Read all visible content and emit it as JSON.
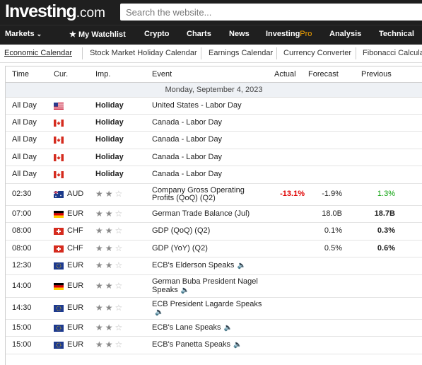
{
  "header": {
    "logo_main": "Investing",
    "logo_suffix": ".com",
    "search_placeholder": "Search the website..."
  },
  "nav": {
    "markets": "Markets",
    "markets_chevron": "⌄",
    "watchlist": "My Watchlist",
    "watchlist_icon": "★",
    "crypto": "Crypto",
    "charts": "Charts",
    "news": "News",
    "investing_pro_a": "Investing",
    "investing_pro_b": "Pro",
    "analysis": "Analysis",
    "technical": "Technical"
  },
  "subnav": [
    "Economic Calendar",
    "Stock Market Holiday Calendar",
    "Earnings Calendar",
    "Currency Converter",
    "Fibonacci Calcula"
  ],
  "table": {
    "headers": {
      "time": "Time",
      "cur": "Cur.",
      "imp": "Imp.",
      "event": "Event",
      "actual": "Actual",
      "forecast": "Forecast",
      "previous": "Previous"
    },
    "date": "Monday, September 4, 2023",
    "rows": [
      {
        "time": "All Day",
        "flag": "us",
        "cur": "",
        "imp": "Holiday",
        "event": "United States - Labor Day",
        "actual": "",
        "forecast": "",
        "previous": ""
      },
      {
        "time": "All Day",
        "flag": "ca",
        "cur": "",
        "imp": "Holiday",
        "event": "Canada - Labor Day",
        "actual": "",
        "forecast": "",
        "previous": ""
      },
      {
        "time": "All Day",
        "flag": "ca",
        "cur": "",
        "imp": "Holiday",
        "event": "Canada - Labor Day",
        "actual": "",
        "forecast": "",
        "previous": ""
      },
      {
        "time": "All Day",
        "flag": "ca",
        "cur": "",
        "imp": "Holiday",
        "event": "Canada - Labor Day",
        "actual": "",
        "forecast": "",
        "previous": ""
      },
      {
        "time": "All Day",
        "flag": "ca",
        "cur": "",
        "imp": "Holiday",
        "event": "Canada - Labor Day",
        "actual": "",
        "forecast": "",
        "previous": ""
      },
      {
        "time": "02:30",
        "flag": "au",
        "cur": "AUD",
        "stars": 2,
        "event_l1": "Company Gross Operating",
        "event_l2": "Profits (QoQ) (Q2)",
        "actual": "-13.1%",
        "actual_style": "neg",
        "forecast": "-1.9%",
        "previous": "1.3%",
        "previous_style": "pos"
      },
      {
        "time": "07:00",
        "flag": "de",
        "cur": "EUR",
        "stars": 2,
        "event": "German Trade Balance (Jul)",
        "actual": "",
        "forecast": "18.0B",
        "previous": "18.7B"
      },
      {
        "time": "08:00",
        "flag": "ch",
        "cur": "CHF",
        "stars": 2,
        "event": "GDP (QoQ) (Q2)",
        "actual": "",
        "forecast": "0.1%",
        "previous": "0.3%"
      },
      {
        "time": "08:00",
        "flag": "ch",
        "cur": "CHF",
        "stars": 2,
        "event": "GDP (YoY) (Q2)",
        "actual": "",
        "forecast": "0.5%",
        "previous": "0.6%"
      },
      {
        "time": "12:30",
        "flag": "eu",
        "cur": "EUR",
        "stars": 2,
        "event": "ECB's Elderson Speaks",
        "speaker": true,
        "actual": "",
        "forecast": "",
        "previous": ""
      },
      {
        "time": "14:00",
        "flag": "de",
        "cur": "EUR",
        "stars": 2,
        "event_l1": "German Buba President Nagel",
        "event_l2": "Speaks",
        "speaker": true,
        "actual": "",
        "forecast": "",
        "previous": ""
      },
      {
        "time": "14:30",
        "flag": "eu",
        "cur": "EUR",
        "stars": 2,
        "event_l1": "ECB President Lagarde Speaks",
        "event_l2": "",
        "speaker": true,
        "actual": "",
        "forecast": "",
        "previous": ""
      },
      {
        "time": "15:00",
        "flag": "eu",
        "cur": "EUR",
        "stars": 2,
        "event": "ECB's Lane Speaks",
        "speaker": true,
        "actual": "",
        "forecast": "",
        "previous": ""
      },
      {
        "time": "15:00",
        "flag": "eu",
        "cur": "EUR",
        "stars": 2,
        "event": "ECB's Panetta Speaks",
        "speaker": true,
        "actual": "",
        "forecast": "",
        "previous": ""
      }
    ]
  },
  "colors": {
    "negative": "#e00000",
    "positive": "#0aa10a",
    "accent": "#f6a400"
  }
}
